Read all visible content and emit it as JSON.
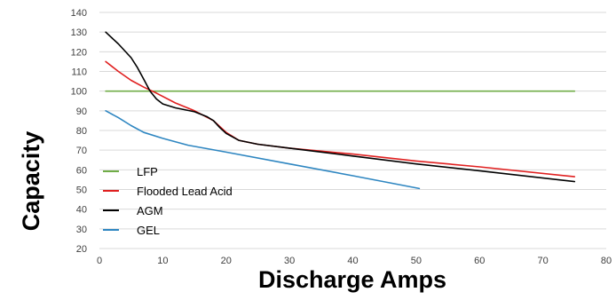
{
  "chart_data": {
    "type": "line",
    "title": "",
    "xlabel": "Discharge Amps",
    "ylabel": "Capacity",
    "xlim": [
      0,
      80
    ],
    "ylim": [
      20,
      140
    ],
    "x_ticks": [
      0,
      10,
      20,
      30,
      40,
      50,
      60,
      70,
      80
    ],
    "y_ticks": [
      20,
      30,
      40,
      50,
      60,
      70,
      80,
      90,
      100,
      110,
      120,
      130,
      140
    ],
    "grid": "horizontal",
    "legend_position": "bottom-left",
    "series": [
      {
        "name": "LFP",
        "color": "#70ad47",
        "points": [
          [
            1,
            100
          ],
          [
            75,
            100
          ]
        ]
      },
      {
        "name": "Flooded Lead Acid",
        "color": "#e02020",
        "points": [
          [
            1,
            115
          ],
          [
            3,
            110
          ],
          [
            5,
            105.5
          ],
          [
            7,
            102
          ],
          [
            9,
            99
          ],
          [
            12,
            94
          ],
          [
            15,
            90
          ],
          [
            18,
            85
          ],
          [
            20,
            79
          ],
          [
            22,
            75
          ],
          [
            25,
            73
          ],
          [
            30,
            71
          ],
          [
            40,
            68
          ],
          [
            50,
            64.5
          ],
          [
            60,
            61.5
          ],
          [
            75,
            56.5
          ]
        ]
      },
      {
        "name": "AGM",
        "color": "#000000",
        "points": [
          [
            1,
            130
          ],
          [
            3,
            124
          ],
          [
            5,
            117
          ],
          [
            6,
            112
          ],
          [
            7,
            106
          ],
          [
            8,
            100
          ],
          [
            9,
            96
          ],
          [
            10,
            93.5
          ],
          [
            12,
            91.5
          ],
          [
            15,
            89.5
          ],
          [
            17,
            87
          ],
          [
            18,
            85
          ],
          [
            19,
            81.5
          ],
          [
            20,
            78.5
          ],
          [
            22,
            75
          ],
          [
            25,
            73
          ],
          [
            30,
            71
          ],
          [
            40,
            67
          ],
          [
            50,
            63
          ],
          [
            60,
            59.5
          ],
          [
            75,
            54
          ]
        ]
      },
      {
        "name": "GEL",
        "color": "#2e86c1",
        "points": [
          [
            1,
            90
          ],
          [
            3,
            86.5
          ],
          [
            5,
            82.5
          ],
          [
            7,
            79
          ],
          [
            10,
            76
          ],
          [
            14,
            72.5
          ],
          [
            20,
            69
          ],
          [
            30,
            63
          ],
          [
            40,
            57
          ],
          [
            50.5,
            50.5
          ]
        ]
      }
    ]
  }
}
